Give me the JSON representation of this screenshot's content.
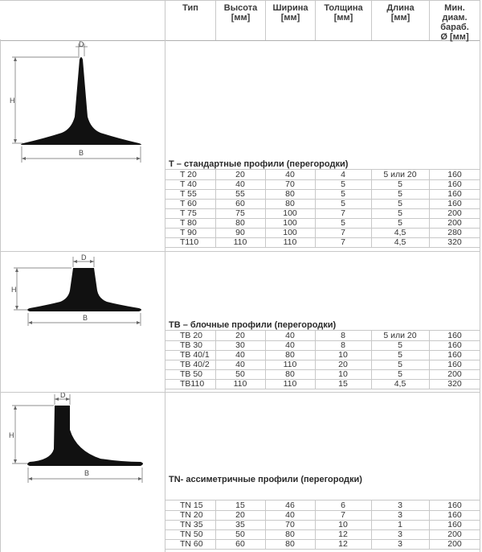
{
  "header": {
    "type": "Тип",
    "height_l1": "Высота",
    "height_l2": "[мм]",
    "width_l1": "Ширина",
    "width_l2": "[мм]",
    "thickness_l1": "Толщина",
    "thickness_l2": "[мм]",
    "length_l1": "Длина",
    "length_l2": "[мм]",
    "drum_l1": "Мин.",
    "drum_l2": "диам.",
    "drum_l3": "бараб.",
    "drum_l4": "Ø [мм]"
  },
  "figure_labels": {
    "h": "H",
    "d": "D",
    "b": "B"
  },
  "sections": [
    {
      "title": "T – стандартные профили (перегородки)",
      "rows": [
        [
          "T 20",
          "20",
          "40",
          "4",
          "5 или 20",
          "160"
        ],
        [
          "T 40",
          "40",
          "70",
          "5",
          "5",
          "160"
        ],
        [
          "T 55",
          "55",
          "80",
          "5",
          "5",
          "160"
        ],
        [
          "T 60",
          "60",
          "80",
          "5",
          "5",
          "160"
        ],
        [
          "T 75",
          "75",
          "100",
          "7",
          "5",
          "200"
        ],
        [
          "T 80",
          "80",
          "100",
          "5",
          "5",
          "200"
        ],
        [
          "T 90",
          "90",
          "100",
          "7",
          "4,5",
          "280"
        ],
        [
          "T110",
          "110",
          "110",
          "7",
          "4,5",
          "320"
        ]
      ]
    },
    {
      "title": "TB – блочные профили (перегородки)",
      "rows": [
        [
          "TB 20",
          "20",
          "40",
          "8",
          "5 или 20",
          "160"
        ],
        [
          "TB 30",
          "30",
          "40",
          "8",
          "5",
          "160"
        ],
        [
          "TB 40/1",
          "40",
          "80",
          "10",
          "5",
          "160"
        ],
        [
          "TB 40/2",
          "40",
          "110",
          "20",
          "5",
          "160"
        ],
        [
          "TB 50",
          "50",
          "80",
          "10",
          "5",
          "200"
        ],
        [
          "TB110",
          "110",
          "110",
          "15",
          "4,5",
          "320"
        ]
      ]
    },
    {
      "title": "TN- ассиметричные профили (перегородки)",
      "rows": [
        [
          "TN 15",
          "15",
          "46",
          "6",
          "3",
          "160"
        ],
        [
          "TN 20",
          "20",
          "40",
          "7",
          "3",
          "160"
        ],
        [
          "TN 35",
          "35",
          "70",
          "10",
          "1",
          "160"
        ],
        [
          "TN 50",
          "50",
          "80",
          "12",
          "3",
          "200"
        ],
        [
          "TN 60",
          "60",
          "80",
          "12",
          "3",
          "200"
        ]
      ]
    }
  ]
}
